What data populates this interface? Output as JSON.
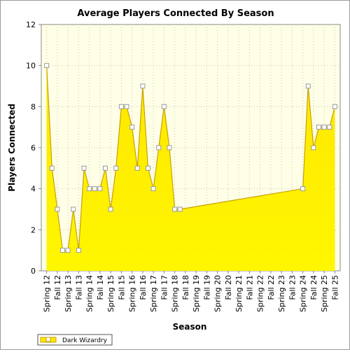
{
  "chart_data": {
    "type": "area",
    "title": "Average Players Connected By Season",
    "xlabel": "Season",
    "ylabel": "Players Connected",
    "ylim": [
      0,
      12
    ],
    "yticks": [
      0,
      2,
      4,
      6,
      8,
      10,
      12
    ],
    "grid": true,
    "legend": "bottom-left",
    "colors": {
      "fill_top": "#FFE600",
      "fill_bottom": "#FFF700",
      "line": "#C8A000",
      "plot_bg": "#FFFFE8",
      "grid": "#C8C8A0"
    },
    "categories": [
      "Spring 12",
      "Fall 12",
      "Spring 13",
      "Fall 13",
      "Spring 14",
      "Fall 14",
      "Spring 15",
      "Fall 15",
      "Spring 16",
      "Fall 16",
      "Spring 17",
      "Fall 17",
      "Spring 18",
      "Fall 18",
      "Spring 19",
      "Fall 19",
      "Spring 20",
      "Fall 20",
      "Spring 21",
      "Fall 21",
      "Spring 22",
      "Fall 22",
      "Spring 23",
      "Fall 23",
      "Spring 24",
      "Fall 24",
      "Spring 25",
      "Fall 25"
    ],
    "series": [
      {
        "name": "Dark Wizardry",
        "points": [
          [
            0,
            10
          ],
          [
            0.5,
            5
          ],
          [
            1,
            3
          ],
          [
            1.5,
            1
          ],
          [
            2,
            1
          ],
          [
            2.5,
            3
          ],
          [
            3,
            1
          ],
          [
            3.5,
            5
          ],
          [
            4,
            4
          ],
          [
            4.5,
            4
          ],
          [
            5,
            4
          ],
          [
            5.5,
            5
          ],
          [
            6,
            3
          ],
          [
            6.5,
            5
          ],
          [
            7,
            8
          ],
          [
            7.5,
            8
          ],
          [
            8,
            7
          ],
          [
            8.5,
            5
          ],
          [
            9,
            9
          ],
          [
            9.5,
            5
          ],
          [
            10,
            4
          ],
          [
            10.5,
            6
          ],
          [
            11,
            8
          ],
          [
            11.5,
            6
          ],
          [
            12,
            3
          ],
          [
            12.5,
            3
          ],
          [
            24,
            4
          ],
          [
            24.5,
            9
          ],
          [
            25,
            6
          ],
          [
            25.5,
            7
          ],
          [
            26,
            7
          ],
          [
            26.5,
            7
          ],
          [
            27,
            8
          ]
        ]
      }
    ]
  }
}
